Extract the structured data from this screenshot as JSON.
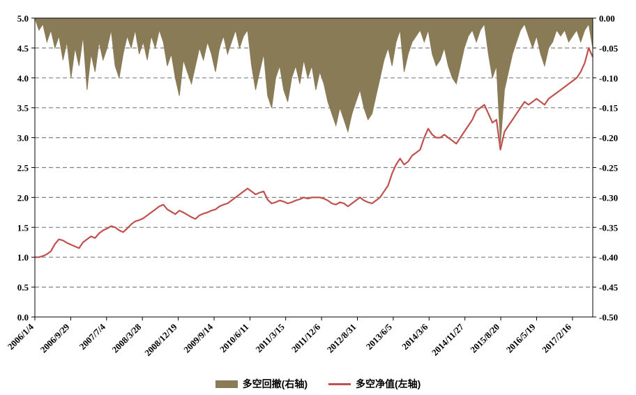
{
  "chart_data": {
    "type": "line",
    "title": "",
    "legend_position": "bottom",
    "grid": {
      "style": "dashed",
      "color": "#808080"
    },
    "x_tick_labels": [
      "2006/1/4",
      "2006/9/29",
      "2007/7/4",
      "2008/3/28",
      "2008/12/19",
      "2009/9/14",
      "2010/6/11",
      "2011/3/15",
      "2011/12/6",
      "2012/8/31",
      "2013/6/5",
      "2014/3/6",
      "2014/11/27",
      "2015/8/20",
      "2016/5/19",
      "2017/2/16"
    ],
    "left_axis": {
      "min": 0,
      "max": 5,
      "step": 0.5,
      "tick_labels": [
        "5.0",
        "4.5",
        "4.0",
        "3.5",
        "3.0",
        "2.5",
        "2.0",
        "1.5",
        "1.0",
        "0.5",
        "0.0"
      ]
    },
    "right_axis": {
      "min": -0.5,
      "max": 0,
      "step": 0.05,
      "tick_labels": [
        "0.00",
        "-0.05",
        "-0.10",
        "-0.15",
        "-0.20",
        "-0.25",
        "-0.30",
        "-0.35",
        "-0.40",
        "-0.45",
        "-0.50"
      ]
    },
    "series": [
      {
        "name": "多空回撤(右轴)",
        "type": "area",
        "axis": "right",
        "color": "#8A7B57",
        "values": [
          0.0,
          -0.02,
          -0.01,
          -0.04,
          -0.02,
          -0.05,
          -0.03,
          -0.07,
          -0.04,
          -0.1,
          -0.05,
          -0.08,
          -0.03,
          -0.12,
          -0.06,
          -0.09,
          -0.04,
          -0.07,
          -0.05,
          -0.02,
          -0.08,
          -0.1,
          -0.06,
          -0.03,
          -0.05,
          -0.02,
          -0.06,
          -0.04,
          -0.07,
          -0.03,
          -0.05,
          -0.02,
          -0.04,
          -0.08,
          -0.06,
          -0.1,
          -0.13,
          -0.07,
          -0.09,
          -0.11,
          -0.08,
          -0.05,
          -0.07,
          -0.04,
          -0.06,
          -0.09,
          -0.05,
          -0.03,
          -0.06,
          -0.04,
          -0.02,
          -0.05,
          -0.03,
          -0.02,
          -0.08,
          -0.12,
          -0.09,
          -0.06,
          -0.13,
          -0.15,
          -0.1,
          -0.08,
          -0.12,
          -0.14,
          -0.1,
          -0.08,
          -0.11,
          -0.07,
          -0.1,
          -0.08,
          -0.12,
          -0.09,
          -0.11,
          -0.14,
          -0.16,
          -0.18,
          -0.15,
          -0.17,
          -0.19,
          -0.16,
          -0.14,
          -0.12,
          -0.15,
          -0.17,
          -0.16,
          -0.13,
          -0.1,
          -0.07,
          -0.05,
          -0.08,
          -0.04,
          -0.02,
          -0.09,
          -0.06,
          -0.04,
          -0.03,
          -0.02,
          -0.04,
          -0.02,
          -0.06,
          -0.08,
          -0.07,
          -0.05,
          -0.08,
          -0.1,
          -0.11,
          -0.08,
          -0.05,
          -0.03,
          -0.02,
          -0.04,
          -0.02,
          -0.01,
          -0.06,
          -0.1,
          -0.08,
          -0.21,
          -0.12,
          -0.09,
          -0.06,
          -0.04,
          -0.02,
          -0.01,
          -0.03,
          -0.05,
          -0.03,
          -0.06,
          -0.08,
          -0.05,
          -0.04,
          -0.02,
          -0.03,
          -0.02,
          -0.04,
          -0.03,
          -0.02,
          -0.04,
          -0.02,
          -0.01,
          -0.05
        ]
      },
      {
        "name": "多空净值(左轴)",
        "type": "line",
        "axis": "left",
        "color": "#C0504D",
        "values": [
          1.0,
          1.0,
          1.02,
          1.05,
          1.1,
          1.22,
          1.3,
          1.28,
          1.24,
          1.21,
          1.18,
          1.15,
          1.25,
          1.3,
          1.35,
          1.32,
          1.4,
          1.45,
          1.48,
          1.52,
          1.5,
          1.45,
          1.42,
          1.48,
          1.55,
          1.6,
          1.62,
          1.65,
          1.7,
          1.75,
          1.8,
          1.85,
          1.88,
          1.8,
          1.76,
          1.72,
          1.78,
          1.75,
          1.71,
          1.67,
          1.64,
          1.7,
          1.73,
          1.75,
          1.78,
          1.8,
          1.85,
          1.88,
          1.9,
          1.95,
          2.0,
          2.05,
          2.1,
          2.15,
          2.1,
          2.05,
          2.08,
          2.1,
          1.96,
          1.9,
          1.92,
          1.95,
          1.93,
          1.9,
          1.92,
          1.95,
          1.97,
          2.0,
          1.98,
          2.0,
          2.0,
          2.0,
          1.98,
          1.95,
          1.9,
          1.88,
          1.92,
          1.9,
          1.85,
          1.9,
          1.95,
          2.0,
          1.95,
          1.92,
          1.9,
          1.95,
          2.0,
          2.1,
          2.2,
          2.4,
          2.55,
          2.65,
          2.55,
          2.6,
          2.7,
          2.75,
          2.8,
          3.0,
          3.15,
          3.05,
          3.0,
          3.0,
          3.05,
          3.0,
          2.95,
          2.9,
          3.0,
          3.1,
          3.2,
          3.3,
          3.45,
          3.5,
          3.55,
          3.4,
          3.25,
          3.3,
          2.8,
          3.1,
          3.2,
          3.3,
          3.4,
          3.5,
          3.6,
          3.55,
          3.6,
          3.65,
          3.6,
          3.55,
          3.65,
          3.7,
          3.75,
          3.8,
          3.85,
          3.9,
          3.95,
          4.0,
          4.1,
          4.25,
          4.5,
          4.35
        ]
      }
    ]
  }
}
